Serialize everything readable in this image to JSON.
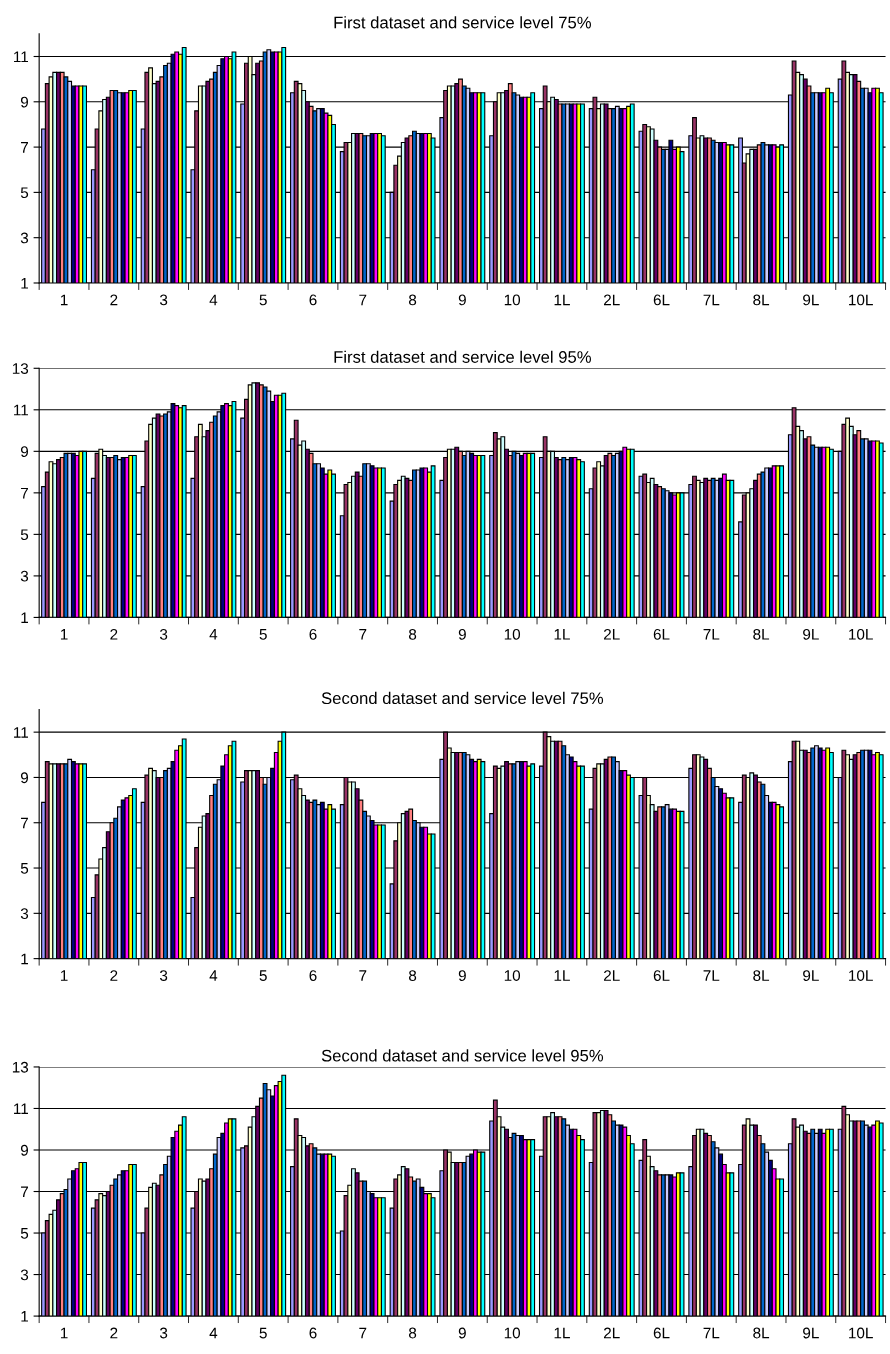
{
  "chart_data": [
    {
      "type": "bar",
      "title": "First dataset and service level 75%",
      "categories": [
        "1",
        "2",
        "3",
        "4",
        "5",
        "6",
        "7",
        "8",
        "9",
        "10",
        "1L",
        "2L",
        "6L",
        "7L",
        "8L",
        "9L",
        "10L"
      ],
      "ylim": [
        1,
        12
      ],
      "yticks": [
        1,
        3,
        5,
        7,
        9,
        11
      ],
      "grid": "y",
      "legend": false,
      "series": [
        {
          "color": "#9999ff",
          "values": [
            7.8,
            6.0,
            7.8,
            6.0,
            8.9,
            9.4,
            6.8,
            5.0,
            8.3,
            7.5,
            8.7,
            8.7,
            7.7,
            7.5,
            7.4,
            9.3,
            10.0
          ]
        },
        {
          "color": "#993366",
          "values": [
            9.8,
            7.8,
            10.3,
            8.6,
            10.7,
            9.9,
            7.2,
            6.2,
            9.5,
            9.0,
            9.7,
            9.2,
            8.0,
            8.3,
            6.3,
            10.8,
            10.8
          ]
        },
        {
          "color": "#ffffcc",
          "values": [
            10.1,
            8.6,
            10.5,
            9.7,
            11.0,
            9.8,
            7.2,
            6.6,
            9.7,
            9.4,
            9.0,
            8.7,
            7.9,
            7.4,
            6.7,
            10.3,
            10.3
          ]
        },
        {
          "color": "#ccffff",
          "values": [
            10.3,
            9.1,
            9.8,
            9.7,
            10.2,
            9.5,
            7.6,
            7.2,
            9.7,
            9.4,
            9.2,
            8.9,
            7.8,
            7.5,
            6.9,
            10.2,
            10.2
          ]
        },
        {
          "color": "#660066",
          "values": [
            10.3,
            9.2,
            9.9,
            9.9,
            10.7,
            9.0,
            7.6,
            7.4,
            9.8,
            9.5,
            9.1,
            8.9,
            7.3,
            7.4,
            6.9,
            10.0,
            10.2
          ]
        },
        {
          "color": "#ff8080",
          "values": [
            10.3,
            9.5,
            10.1,
            10.0,
            10.8,
            8.8,
            7.6,
            7.5,
            10.0,
            9.8,
            8.9,
            8.7,
            7.0,
            7.4,
            7.1,
            9.7,
            9.9
          ]
        },
        {
          "color": "#0066cc",
          "values": [
            10.1,
            9.5,
            10.6,
            10.3,
            11.2,
            8.6,
            7.5,
            7.7,
            9.7,
            9.4,
            8.9,
            8.7,
            6.9,
            7.3,
            7.2,
            9.4,
            9.6
          ]
        },
        {
          "color": "#ccccff",
          "values": [
            9.9,
            9.4,
            10.7,
            10.6,
            11.3,
            8.7,
            7.5,
            7.6,
            9.6,
            9.3,
            8.9,
            8.8,
            6.9,
            7.2,
            7.1,
            9.4,
            9.6
          ]
        },
        {
          "color": "#000080",
          "values": [
            9.7,
            9.4,
            11.1,
            10.9,
            11.2,
            8.7,
            7.6,
            7.6,
            9.4,
            9.2,
            8.9,
            8.7,
            7.3,
            7.2,
            7.1,
            9.4,
            9.4
          ]
        },
        {
          "color": "#ff00ff",
          "values": [
            9.7,
            9.4,
            11.2,
            11.0,
            11.2,
            8.5,
            7.6,
            7.6,
            9.4,
            9.2,
            8.9,
            8.7,
            6.9,
            7.2,
            7.1,
            9.4,
            9.6
          ]
        },
        {
          "color": "#ffff00",
          "values": [
            9.7,
            9.5,
            11.1,
            10.9,
            11.2,
            8.4,
            7.6,
            7.6,
            9.4,
            9.2,
            8.9,
            8.8,
            7.0,
            7.1,
            7.0,
            9.6,
            9.6
          ]
        },
        {
          "color": "#00ffff",
          "values": [
            9.7,
            9.5,
            11.4,
            11.2,
            11.4,
            8.0,
            7.5,
            7.4,
            9.4,
            9.4,
            8.9,
            8.9,
            6.8,
            7.1,
            7.1,
            9.4,
            9.4
          ]
        }
      ]
    },
    {
      "type": "bar",
      "title": "First dataset and service level 95%",
      "categories": [
        "1",
        "2",
        "3",
        "4",
        "5",
        "6",
        "7",
        "8",
        "9",
        "10",
        "1L",
        "2L",
        "6L",
        "7L",
        "8L",
        "9L",
        "10L"
      ],
      "ylim": [
        1,
        13
      ],
      "yticks": [
        1,
        3,
        5,
        7,
        9,
        11,
        13
      ],
      "grid": "y",
      "legend": false,
      "series": [
        {
          "color": "#9999ff",
          "values": [
            7.3,
            7.7,
            7.3,
            7.7,
            10.6,
            9.6,
            5.9,
            6.6,
            7.6,
            8.8,
            8.7,
            7.2,
            7.8,
            7.4,
            5.6,
            9.8,
            9.0
          ]
        },
        {
          "color": "#993366",
          "values": [
            8.0,
            8.9,
            9.5,
            9.7,
            11.5,
            10.5,
            7.4,
            7.4,
            8.7,
            9.9,
            9.7,
            8.2,
            7.9,
            7.8,
            6.9,
            11.1,
            10.3
          ]
        },
        {
          "color": "#ffffcc",
          "values": [
            8.5,
            9.1,
            10.3,
            10.3,
            12.2,
            9.3,
            7.5,
            7.6,
            9.1,
            9.6,
            9.0,
            8.5,
            7.5,
            7.6,
            7.0,
            10.2,
            10.6
          ]
        },
        {
          "color": "#ccffff",
          "values": [
            8.4,
            8.8,
            10.6,
            9.7,
            12.3,
            9.5,
            7.8,
            7.8,
            9.1,
            9.7,
            9.0,
            8.3,
            7.7,
            7.5,
            7.2,
            10.0,
            10.2
          ]
        },
        {
          "color": "#660066",
          "values": [
            8.6,
            8.7,
            10.8,
            10.0,
            12.3,
            9.1,
            8.0,
            7.7,
            9.2,
            9.1,
            8.7,
            8.8,
            7.4,
            7.7,
            7.6,
            9.6,
            9.8
          ]
        },
        {
          "color": "#ff8080",
          "values": [
            8.7,
            8.7,
            10.7,
            10.4,
            12.2,
            8.9,
            7.8,
            7.6,
            9.0,
            8.8,
            8.6,
            8.9,
            7.3,
            7.6,
            7.9,
            9.7,
            10.0
          ]
        },
        {
          "color": "#0066cc",
          "values": [
            8.9,
            8.8,
            10.8,
            10.7,
            12.1,
            8.4,
            8.4,
            8.1,
            8.8,
            9.0,
            8.7,
            8.8,
            7.2,
            7.7,
            8.0,
            9.3,
            9.6
          ]
        },
        {
          "color": "#ccccff",
          "values": [
            8.9,
            8.6,
            10.9,
            10.9,
            11.9,
            8.4,
            8.4,
            8.1,
            9.0,
            8.9,
            8.6,
            8.9,
            7.1,
            7.6,
            8.2,
            9.2,
            9.6
          ]
        },
        {
          "color": "#000080",
          "values": [
            8.9,
            8.7,
            11.3,
            11.2,
            11.4,
            8.2,
            8.3,
            8.2,
            8.9,
            8.8,
            8.7,
            9.0,
            7.0,
            7.7,
            8.2,
            9.2,
            9.5
          ]
        },
        {
          "color": "#ff00ff",
          "values": [
            8.8,
            8.7,
            11.2,
            11.3,
            11.7,
            7.9,
            8.2,
            8.2,
            8.8,
            8.9,
            8.7,
            9.2,
            6.9,
            7.9,
            8.3,
            9.2,
            9.5
          ]
        },
        {
          "color": "#ffff00",
          "values": [
            9.0,
            8.8,
            11.1,
            11.2,
            11.7,
            8.1,
            8.2,
            8.0,
            8.8,
            8.9,
            8.6,
            9.1,
            7.0,
            7.6,
            8.3,
            9.2,
            9.5
          ]
        },
        {
          "color": "#00ffff",
          "values": [
            9.0,
            8.8,
            11.2,
            11.4,
            11.8,
            7.9,
            8.2,
            8.3,
            8.8,
            8.9,
            8.5,
            9.1,
            7.0,
            7.6,
            8.3,
            9.1,
            9.4
          ]
        }
      ]
    },
    {
      "type": "bar",
      "title": "Second dataset and service level 75%",
      "categories": [
        "1",
        "2",
        "3",
        "4",
        "5",
        "6",
        "7",
        "8",
        "9",
        "10",
        "1L",
        "2L",
        "6L",
        "7L",
        "8L",
        "9L",
        "10L"
      ],
      "ylim": [
        1,
        12
      ],
      "yticks": [
        1,
        3,
        5,
        7,
        9,
        11
      ],
      "grid": "y",
      "legend": false,
      "series": [
        {
          "color": "#9999ff",
          "values": [
            7.9,
            3.7,
            7.9,
            3.7,
            8.8,
            8.9,
            7.8,
            4.3,
            9.8,
            7.4,
            9.5,
            7.6,
            8.2,
            9.4,
            7.9,
            9.7,
            9.0
          ]
        },
        {
          "color": "#993366",
          "values": [
            9.7,
            4.7,
            9.1,
            5.9,
            9.3,
            9.1,
            9.0,
            6.2,
            11.0,
            9.5,
            11.0,
            9.4,
            9.0,
            10.0,
            9.1,
            10.6,
            10.2
          ]
        },
        {
          "color": "#ffffcc",
          "values": [
            9.6,
            5.4,
            9.4,
            6.8,
            9.3,
            8.5,
            8.8,
            7.0,
            10.3,
            9.4,
            10.8,
            9.6,
            8.2,
            10.0,
            9.0,
            10.6,
            10.0
          ]
        },
        {
          "color": "#ccffff",
          "values": [
            9.6,
            5.9,
            9.3,
            7.3,
            9.3,
            8.2,
            8.8,
            7.4,
            10.1,
            9.5,
            10.6,
            9.6,
            7.8,
            9.9,
            9.2,
            10.2,
            9.8
          ]
        },
        {
          "color": "#660066",
          "values": [
            9.6,
            6.6,
            9.0,
            7.4,
            9.3,
            8.0,
            8.5,
            7.5,
            10.1,
            9.7,
            10.6,
            9.8,
            7.5,
            9.8,
            9.1,
            10.2,
            10.0
          ]
        },
        {
          "color": "#ff8080",
          "values": [
            9.6,
            7.0,
            9.0,
            8.2,
            9.0,
            7.9,
            8.0,
            7.6,
            10.1,
            9.6,
            10.6,
            9.9,
            7.7,
            9.4,
            8.8,
            10.1,
            10.1
          ]
        },
        {
          "color": "#0066cc",
          "values": [
            9.6,
            7.2,
            9.3,
            8.7,
            8.7,
            8.0,
            7.5,
            7.1,
            10.1,
            9.6,
            10.4,
            9.9,
            7.7,
            9.0,
            8.7,
            10.3,
            10.2
          ]
        },
        {
          "color": "#ccccff",
          "values": [
            9.8,
            7.7,
            9.4,
            8.9,
            9.0,
            7.8,
            7.3,
            7.0,
            10.0,
            9.7,
            10.0,
            9.7,
            7.8,
            8.6,
            8.2,
            10.4,
            10.2
          ]
        },
        {
          "color": "#000080",
          "values": [
            9.7,
            8.0,
            9.7,
            9.5,
            9.4,
            7.9,
            7.1,
            6.8,
            9.8,
            9.7,
            9.9,
            9.3,
            7.6,
            8.5,
            7.9,
            10.3,
            10.2
          ]
        },
        {
          "color": "#ff00ff",
          "values": [
            9.6,
            8.1,
            10.2,
            10.0,
            10.1,
            7.6,
            6.9,
            6.8,
            9.7,
            9.7,
            9.7,
            9.3,
            7.6,
            8.3,
            7.9,
            10.2,
            10.0
          ]
        },
        {
          "color": "#ffff00",
          "values": [
            9.6,
            8.2,
            10.4,
            10.4,
            10.6,
            7.8,
            6.9,
            6.5,
            9.8,
            9.5,
            9.5,
            9.1,
            7.5,
            8.1,
            7.8,
            10.3,
            10.1
          ]
        },
        {
          "color": "#00ffff",
          "values": [
            9.6,
            8.5,
            10.7,
            10.6,
            11.0,
            7.6,
            6.9,
            6.5,
            9.7,
            9.6,
            9.5,
            9.0,
            7.5,
            8.1,
            7.7,
            10.1,
            10.0
          ]
        }
      ]
    },
    {
      "type": "bar",
      "title": "Second dataset and service level 95%",
      "categories": [
        "1",
        "2",
        "3",
        "4",
        "5",
        "6",
        "7",
        "8",
        "9",
        "10",
        "1L",
        "2L",
        "6L",
        "7L",
        "8L",
        "9L",
        "10L"
      ],
      "ylim": [
        1,
        13
      ],
      "yticks": [
        1,
        3,
        5,
        7,
        9,
        11,
        13
      ],
      "grid": "y",
      "legend": false,
      "series": [
        {
          "color": "#9999ff",
          "values": [
            5.0,
            6.2,
            5.0,
            6.2,
            9.1,
            8.2,
            5.1,
            6.2,
            8.0,
            10.4,
            8.7,
            8.4,
            8.5,
            8.2,
            8.3,
            9.3,
            10.0
          ]
        },
        {
          "color": "#993366",
          "values": [
            5.6,
            6.6,
            6.2,
            7.0,
            9.2,
            10.5,
            6.8,
            7.6,
            9.0,
            11.4,
            10.6,
            10.8,
            9.5,
            9.7,
            10.2,
            10.5,
            11.1
          ]
        },
        {
          "color": "#ffffcc",
          "values": [
            5.9,
            6.9,
            7.2,
            7.6,
            10.1,
            9.7,
            7.3,
            7.8,
            8.9,
            10.6,
            10.6,
            10.8,
            8.7,
            10.0,
            10.5,
            10.1,
            10.7
          ]
        },
        {
          "color": "#ccffff",
          "values": [
            6.1,
            6.8,
            7.4,
            7.5,
            10.6,
            9.6,
            8.1,
            8.2,
            8.4,
            10.1,
            10.8,
            10.9,
            8.2,
            10.0,
            10.2,
            10.2,
            10.4
          ]
        },
        {
          "color": "#660066",
          "values": [
            6.6,
            7.0,
            7.3,
            7.6,
            11.1,
            9.2,
            7.9,
            8.1,
            8.4,
            10.0,
            10.6,
            10.9,
            8.0,
            9.8,
            10.2,
            9.9,
            10.4
          ]
        },
        {
          "color": "#ff8080",
          "values": [
            6.9,
            7.3,
            7.8,
            8.1,
            11.5,
            9.3,
            7.5,
            7.7,
            8.4,
            9.6,
            10.6,
            10.7,
            7.8,
            9.7,
            9.7,
            9.8,
            10.4
          ]
        },
        {
          "color": "#0066cc",
          "values": [
            7.1,
            7.6,
            8.3,
            8.8,
            12.2,
            9.1,
            7.5,
            7.5,
            8.4,
            9.8,
            10.5,
            10.4,
            7.8,
            9.4,
            9.3,
            10.0,
            10.4
          ]
        },
        {
          "color": "#ccccff",
          "values": [
            7.6,
            7.8,
            8.7,
            9.6,
            11.9,
            8.8,
            7.0,
            7.6,
            8.7,
            9.7,
            10.2,
            10.2,
            7.8,
            9.1,
            8.9,
            9.8,
            10.2
          ]
        },
        {
          "color": "#000080",
          "values": [
            8.0,
            8.0,
            9.6,
            9.8,
            11.6,
            8.8,
            6.9,
            7.2,
            8.8,
            9.7,
            10.0,
            10.2,
            7.8,
            8.8,
            8.5,
            10.0,
            10.1
          ]
        },
        {
          "color": "#ff00ff",
          "values": [
            8.1,
            8.0,
            9.9,
            10.3,
            12.1,
            8.8,
            6.7,
            6.9,
            9.0,
            9.5,
            10.0,
            10.1,
            7.7,
            8.3,
            8.1,
            9.8,
            10.2
          ]
        },
        {
          "color": "#ffff00",
          "values": [
            8.4,
            8.3,
            10.2,
            10.5,
            12.3,
            8.8,
            6.7,
            6.9,
            8.9,
            9.5,
            9.7,
            9.7,
            7.9,
            7.9,
            7.6,
            10.0,
            10.4
          ]
        },
        {
          "color": "#00ffff",
          "values": [
            8.4,
            8.3,
            10.6,
            10.5,
            12.6,
            8.7,
            6.7,
            6.7,
            8.9,
            9.5,
            9.5,
            9.3,
            7.9,
            7.9,
            7.6,
            10.0,
            10.3
          ]
        }
      ]
    }
  ]
}
